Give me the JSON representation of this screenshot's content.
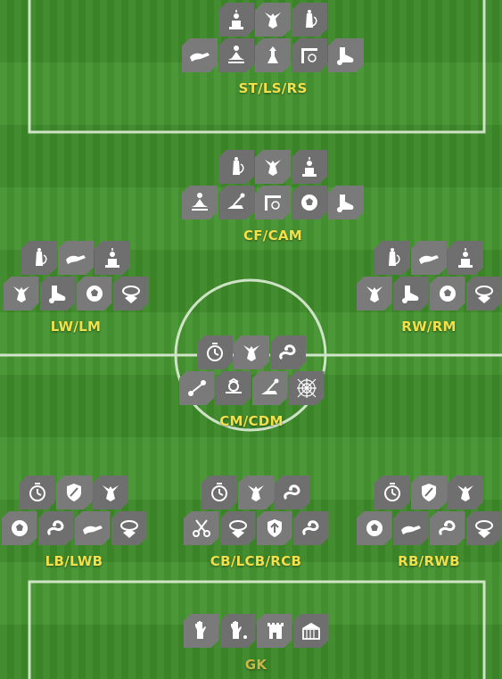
{
  "positions": {
    "st": {
      "label": "ST/LS/RS",
      "top": [
        "statue",
        "engine",
        "lighthouse"
      ],
      "bottom": [
        "cheetah",
        "yoga",
        "cannon",
        "post",
        "boot"
      ]
    },
    "cf": {
      "label": "CF/CAM",
      "top": [
        "lighthouse",
        "engine",
        "statue"
      ],
      "bottom": [
        "yoga",
        "catapult",
        "post",
        "ball",
        "boot"
      ]
    },
    "lw": {
      "label": "LW/LM",
      "top": [
        "lighthouse",
        "cheetah",
        "statue"
      ],
      "bottom": [
        "engine",
        "boot",
        "ball",
        "rugby"
      ]
    },
    "rw": {
      "label": "RW/RM",
      "top": [
        "lighthouse",
        "cheetah",
        "statue"
      ],
      "bottom": [
        "engine",
        "boot",
        "ball",
        "rugby"
      ]
    },
    "cm": {
      "label": "CM/CDM",
      "top": [
        "timer",
        "engine",
        "snake"
      ],
      "bottom": [
        "pass",
        "crown",
        "catapult",
        "web"
      ]
    },
    "lb": {
      "label": "LB/LWB",
      "top": [
        "timer",
        "shield",
        "engine"
      ],
      "bottom": [
        "ball",
        "snake",
        "cheetah",
        "rugby"
      ]
    },
    "cb": {
      "label": "CB/LCB/RCB",
      "top": [
        "timer",
        "engine",
        "snake"
      ],
      "bottom": [
        "scissors",
        "rugby",
        "shield-arrow",
        "snake"
      ]
    },
    "rb": {
      "label": "RB/RWB",
      "top": [
        "timer",
        "shield",
        "engine"
      ],
      "bottom": [
        "ball",
        "cheetah",
        "snake",
        "rugby"
      ]
    },
    "gk": {
      "label": "GK",
      "top": [],
      "bottom": [
        "glove",
        "glove-drop",
        "tower",
        "wall"
      ]
    }
  }
}
